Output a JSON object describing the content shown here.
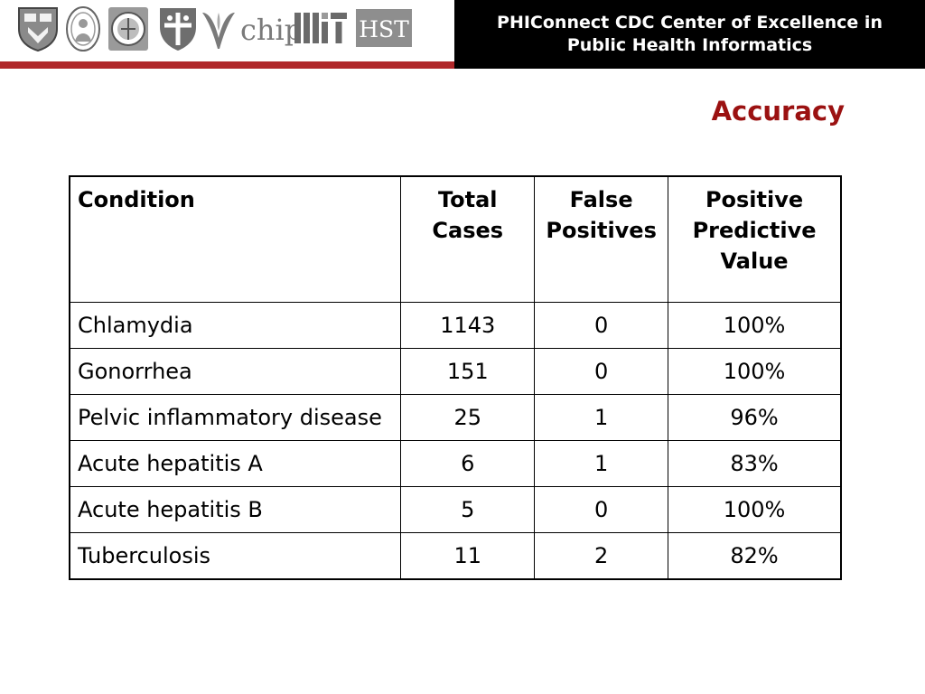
{
  "header": {
    "title_line1": "PHIConnect CDC Center of Excellence in",
    "title_line2": "Public Health Informatics",
    "logos": [
      {
        "icon": "harvard-shield-icon",
        "label": ""
      },
      {
        "icon": "childrens-hospital-seal-icon",
        "label": ""
      },
      {
        "icon": "harvard-medical-seal-icon",
        "label": ""
      },
      {
        "icon": "harvard-pilgrim-shield-icon",
        "label": ""
      },
      {
        "icon": "v-emblem-icon",
        "label": ""
      },
      {
        "icon": "chip-logo-icon",
        "label": "chip"
      },
      {
        "icon": "mit-logo-icon",
        "label": "MIT"
      },
      {
        "icon": "hst-logo-icon",
        "label": "HST"
      }
    ],
    "colors": {
      "band_background": "#000000",
      "band_text": "#ffffff",
      "rule": "#b0282a"
    }
  },
  "slide": {
    "title": "Accuracy",
    "title_color": "#9b1111"
  },
  "table": {
    "headers": {
      "condition": "Condition",
      "total_cases_line1": "Total",
      "total_cases_line2": "Cases",
      "false_positives_line1": "False",
      "false_positives_line2": "Positives",
      "ppv_line1": "Positive",
      "ppv_line2": "Predictive",
      "ppv_line3": "Value"
    },
    "rows": [
      {
        "condition": "Chlamydia",
        "total_cases": "1143",
        "false_positives": "0",
        "ppv": "100%"
      },
      {
        "condition": "Gonorrhea",
        "total_cases": "151",
        "false_positives": "0",
        "ppv": "100%"
      },
      {
        "condition": "Pelvic inflammatory disease",
        "total_cases": "25",
        "false_positives": "1",
        "ppv": "96%"
      },
      {
        "condition": "Acute hepatitis A",
        "total_cases": "6",
        "false_positives": "1",
        "ppv": "83%"
      },
      {
        "condition": "Acute hepatitis B",
        "total_cases": "5",
        "false_positives": "0",
        "ppv": "100%"
      },
      {
        "condition": "Tuberculosis",
        "total_cases": "11",
        "false_positives": "2",
        "ppv": "82%"
      }
    ]
  }
}
